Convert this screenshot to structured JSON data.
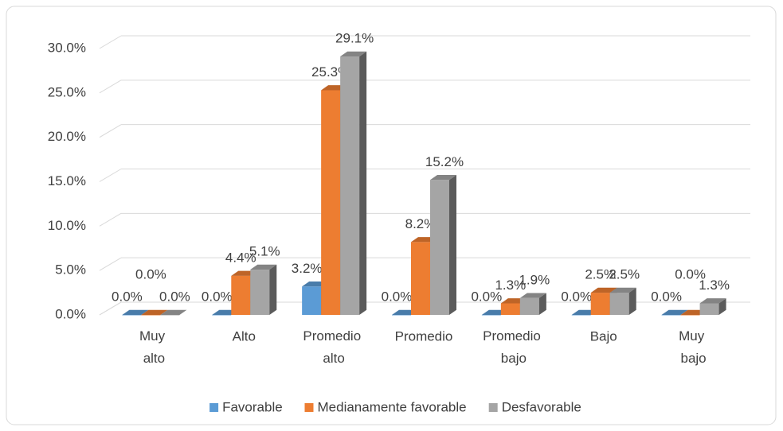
{
  "chart_data": {
    "type": "bar3d",
    "categories": [
      "Muy alto",
      "Alto",
      "Promedio alto",
      "Promedio",
      "Promedio bajo",
      "Bajo",
      "Muy bajo"
    ],
    "series": [
      {
        "name": "Favorable",
        "color": "#5b9bd5",
        "values": [
          0,
          0,
          3.2,
          0,
          0,
          0,
          0
        ],
        "value_labels": [
          "0.0%",
          "0.0%",
          "3.2%",
          "0.0%",
          "0.0%",
          "0.0%",
          "0.0%"
        ]
      },
      {
        "name": "Medianamente favorable",
        "color": "#ed7d31",
        "values": [
          0,
          4.4,
          25.3,
          8.2,
          1.3,
          2.5,
          0
        ],
        "value_labels": [
          "0.0%",
          "4.4%",
          "25.3%",
          "8.2%",
          "1.3%",
          "2.5%",
          "0.0%"
        ]
      },
      {
        "name": "Desfavorable",
        "color": "#a5a5a5",
        "values": [
          0,
          5.1,
          29.1,
          15.2,
          1.9,
          2.5,
          1.3
        ],
        "value_labels": [
          "0.0%",
          "5.1%",
          "29.1%",
          "15.2%",
          "1.9%",
          "2.5%",
          "1.3%"
        ]
      }
    ],
    "ylim": [
      0,
      30
    ],
    "yticks": [
      {
        "value": 0,
        "label": "0.0%"
      },
      {
        "value": 5,
        "label": "5.0%"
      },
      {
        "value": 10,
        "label": "10.0%"
      },
      {
        "value": 15,
        "label": "15.0%"
      },
      {
        "value": 20,
        "label": "20.0%"
      },
      {
        "value": 25,
        "label": "25.0%"
      },
      {
        "value": 30,
        "label": "30.0%"
      }
    ],
    "grid": true,
    "legend": "bottom"
  }
}
